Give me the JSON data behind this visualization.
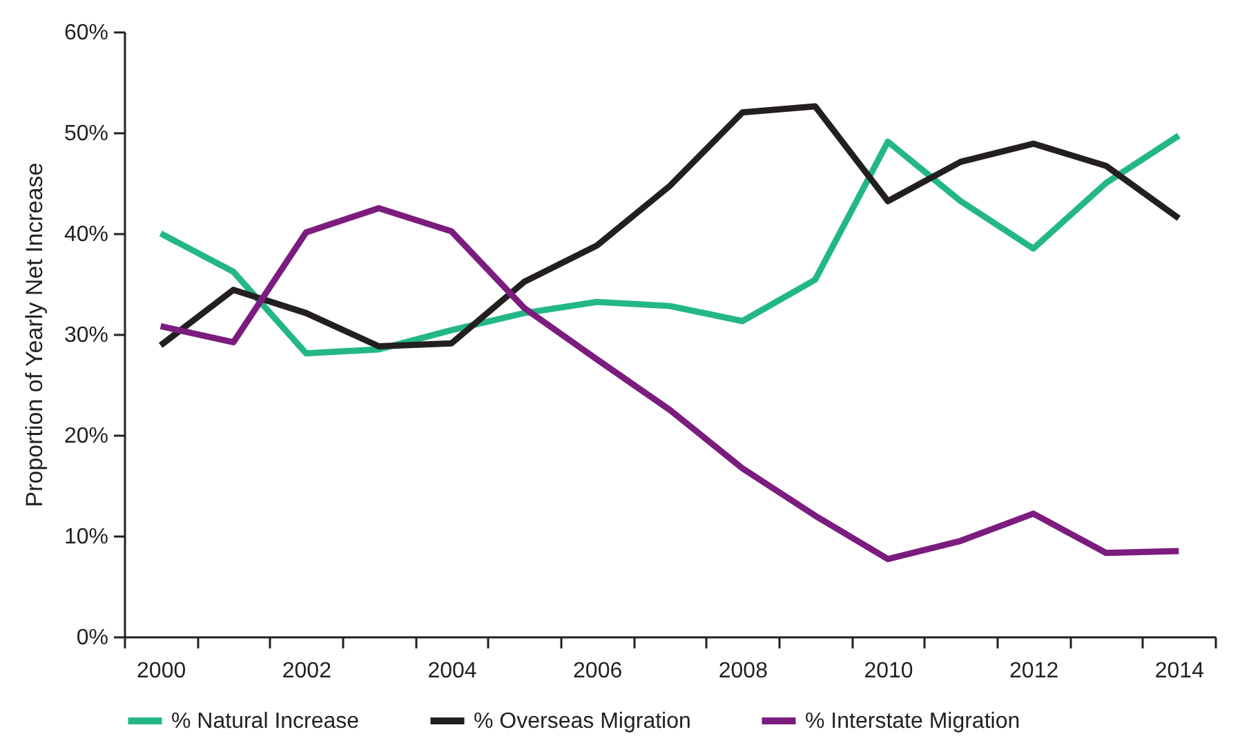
{
  "chart_data": {
    "type": "line",
    "ylabel": "Proportion of Yearly Net Increase",
    "categories": [
      "2000",
      null,
      "2002",
      null,
      "2004",
      null,
      "2006",
      null,
      "2008",
      null,
      "2010",
      null,
      "2012",
      null,
      "2014"
    ],
    "series": [
      {
        "name": "% Natural Increase",
        "color": "#23b787",
        "values": [
          40.0,
          36.2,
          28.1,
          28.5,
          30.4,
          32.1,
          33.2,
          32.8,
          31.3,
          35.4,
          49.1,
          43.2,
          38.5,
          45.0,
          49.7
        ]
      },
      {
        "name": "% Overseas Migration",
        "color": "#231f20",
        "values": [
          28.9,
          34.4,
          32.1,
          28.8,
          29.1,
          35.2,
          38.8,
          44.7,
          52.0,
          52.6,
          43.2,
          47.1,
          48.9,
          46.7,
          41.5
        ]
      },
      {
        "name": "% Interstate Migration",
        "color": "#7b1c7e",
        "values": [
          30.8,
          29.2,
          40.1,
          42.5,
          40.2,
          32.6,
          27.5,
          22.5,
          16.7,
          12.0,
          7.7,
          9.5,
          12.2,
          8.3,
          8.5
        ]
      }
    ],
    "ylim": [
      0,
      60
    ],
    "yticks": [
      {
        "value": 0,
        "label": "0%"
      },
      {
        "value": 10,
        "label": "10%"
      },
      {
        "value": 20,
        "label": "20%"
      },
      {
        "value": 30,
        "label": "30%"
      },
      {
        "value": 40,
        "label": "40%"
      },
      {
        "value": 50,
        "label": "50%"
      },
      {
        "value": 60,
        "label": "60%"
      }
    ],
    "grid": false,
    "legend": "bottom",
    "marker": "none",
    "line_style": "solid"
  }
}
